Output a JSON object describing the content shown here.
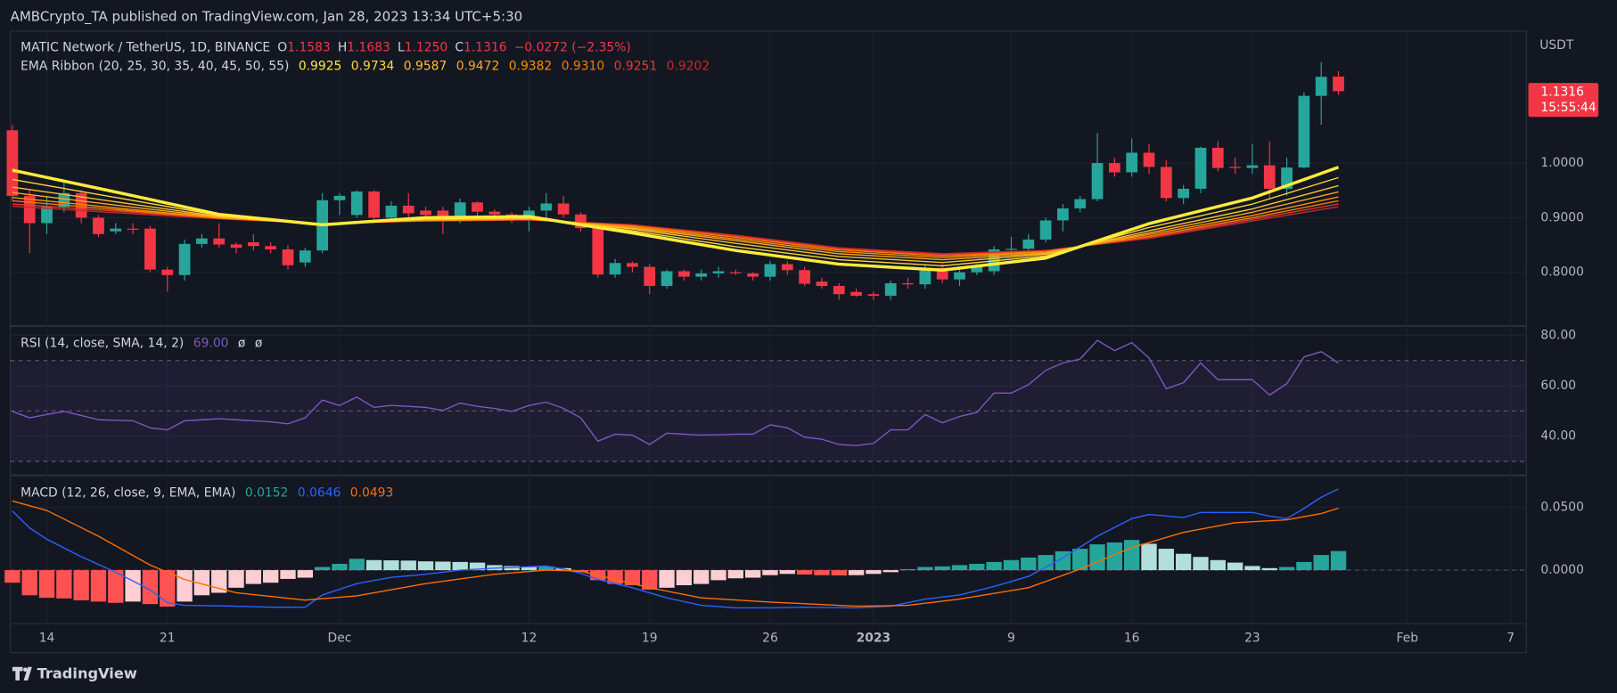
{
  "header": {
    "published": "AMBCrypto_TA published on TradingView.com, Jan 28, 2023 13:34 UTC+5:30"
  },
  "footer": {
    "brand": "TradingView"
  },
  "chart_data": {
    "type": "candlestick",
    "symbol": "MATIC Network / TetherUS, 1D, BINANCE",
    "ohlc_legend": [
      {
        "label": "O",
        "value": "1.1583"
      },
      {
        "label": "H",
        "value": "1.1683"
      },
      {
        "label": "L",
        "value": "1.1250"
      },
      {
        "label": "C",
        "value": "1.1316"
      }
    ],
    "change": "−0.0272 (−2.35%)",
    "legend_color": "#f23645",
    "axis_unit": "USDT",
    "last_price": {
      "label": "1.1316",
      "countdown": "15:55:44",
      "color": "#f23645"
    },
    "categories": [
      "Nov 12",
      "Nov 13",
      "Nov 14",
      "Nov 15",
      "Nov 16",
      "Nov 17",
      "Nov 18",
      "Nov 19",
      "Nov 20",
      "Nov 21",
      "Nov 22",
      "Nov 23",
      "Nov 24",
      "Nov 25",
      "Nov 26",
      "Nov 27",
      "Nov 28",
      "Nov 29",
      "Nov 30",
      "Dec 1",
      "Dec 2",
      "Dec 3",
      "Dec 4",
      "Dec 5",
      "Dec 6",
      "Dec 7",
      "Dec 8",
      "Dec 9",
      "Dec 10",
      "Dec 11",
      "Dec 12",
      "Dec 13",
      "Dec 14",
      "Dec 15",
      "Dec 16",
      "Dec 17",
      "Dec 18",
      "Dec 19",
      "Dec 20",
      "Dec 21",
      "Dec 22",
      "Dec 23",
      "Dec 24",
      "Dec 25",
      "Dec 26",
      "Dec 27",
      "Dec 28",
      "Dec 29",
      "Dec 30",
      "Dec 31",
      "Jan 1",
      "Jan 2",
      "Jan 3",
      "Jan 4",
      "Jan 5",
      "Jan 6",
      "Jan 7",
      "Jan 8",
      "Jan 9",
      "Jan 10",
      "Jan 11",
      "Jan 12",
      "Jan 13",
      "Jan 14",
      "Jan 15",
      "Jan 16",
      "Jan 17",
      "Jan 18",
      "Jan 19",
      "Jan 20",
      "Jan 21",
      "Jan 22",
      "Jan 23",
      "Jan 24",
      "Jan 25",
      "Jan 26",
      "Jan 27",
      "Jan 28",
      "Jan 29",
      "Jan 30",
      "Jan 31",
      "Feb 1",
      "Feb 2",
      "Feb 3",
      "Feb 4",
      "Feb 5",
      "Feb 6",
      "Feb 7",
      "Feb 8"
    ],
    "xticks": [
      {
        "value": "Nov 14",
        "label": "14"
      },
      {
        "value": "Nov 21",
        "label": "21"
      },
      {
        "value": "Dec 1",
        "label": "Dec"
      },
      {
        "value": "Dec 12",
        "label": "12"
      },
      {
        "value": "Dec 19",
        "label": "19"
      },
      {
        "value": "Dec 26",
        "label": "26"
      },
      {
        "value": "Jan 1",
        "label": "2023"
      },
      {
        "value": "Jan 9",
        "label": "9"
      },
      {
        "value": "Jan 16",
        "label": "16"
      },
      {
        "value": "Jan 23",
        "label": "23"
      },
      {
        "value": "Feb 1",
        "label": "Feb"
      },
      {
        "value": "Feb 7",
        "label": "7"
      }
    ],
    "open": [
      1.06,
      0.94,
      0.89,
      0.92,
      0.945,
      0.9,
      0.875,
      0.88,
      0.88,
      0.805,
      0.795,
      0.852,
      0.862,
      0.851,
      0.855,
      0.848,
      0.842,
      0.818,
      0.84,
      0.932,
      0.905,
      0.948,
      0.9,
      0.922,
      0.913,
      0.913,
      0.896,
      0.928,
      0.911,
      0.906,
      0.896,
      0.913,
      0.926,
      0.906,
      0.881,
      0.796,
      0.817,
      0.81,
      0.775,
      0.802,
      0.792,
      0.798,
      0.8,
      0.798,
      0.792,
      0.815,
      0.804,
      0.783,
      0.775,
      0.764,
      0.76,
      0.757,
      0.78,
      0.778,
      0.808,
      0.787,
      0.8,
      0.802,
      0.842,
      0.843,
      0.86,
      0.895,
      0.917,
      0.934,
      1.0,
      0.983,
      1.019,
      0.993,
      0.936,
      0.953,
      1.028,
      0.993,
      0.991,
      0.996,
      0.953,
      0.992,
      1.123,
      1.1583,
      null,
      null,
      null,
      null,
      null,
      null,
      null,
      null,
      null,
      null,
      null
    ],
    "high": [
      1.07,
      0.95,
      0.94,
      0.97,
      0.95,
      0.905,
      0.89,
      0.89,
      0.885,
      0.81,
      0.86,
      0.87,
      0.89,
      0.855,
      0.87,
      0.855,
      0.85,
      0.845,
      0.945,
      0.945,
      0.95,
      0.95,
      0.93,
      0.945,
      0.92,
      0.92,
      0.935,
      0.93,
      0.915,
      0.91,
      0.92,
      0.945,
      0.94,
      0.91,
      0.885,
      0.825,
      0.82,
      0.815,
      0.805,
      0.805,
      0.805,
      0.81,
      0.805,
      0.8,
      0.82,
      0.82,
      0.81,
      0.79,
      0.78,
      0.77,
      0.765,
      0.785,
      0.79,
      0.815,
      0.815,
      0.805,
      0.815,
      0.848,
      0.865,
      0.87,
      0.9,
      0.925,
      0.94,
      1.055,
      1.01,
      1.045,
      1.035,
      1.005,
      0.96,
      1.03,
      1.04,
      1.01,
      1.035,
      1.04,
      1.01,
      1.13,
      1.185,
      1.1683,
      null,
      null,
      null,
      null,
      null,
      null,
      null,
      null,
      null,
      null,
      null
    ],
    "low": [
      0.93,
      0.835,
      0.87,
      0.91,
      0.89,
      0.865,
      0.87,
      0.87,
      0.8,
      0.765,
      0.785,
      0.845,
      0.845,
      0.835,
      0.84,
      0.835,
      0.805,
      0.81,
      0.835,
      0.905,
      0.9,
      0.895,
      0.895,
      0.9,
      0.895,
      0.87,
      0.89,
      0.9,
      0.9,
      0.89,
      0.875,
      0.9,
      0.9,
      0.875,
      0.79,
      0.79,
      0.8,
      0.76,
      0.77,
      0.785,
      0.785,
      0.79,
      0.795,
      0.785,
      0.785,
      0.795,
      0.775,
      0.77,
      0.75,
      0.755,
      0.75,
      0.75,
      0.77,
      0.77,
      0.78,
      0.775,
      0.795,
      0.795,
      0.83,
      0.835,
      0.855,
      0.875,
      0.91,
      0.93,
      0.975,
      0.975,
      0.98,
      0.93,
      0.925,
      0.945,
      0.985,
      0.98,
      0.98,
      0.935,
      0.94,
      0.99,
      1.07,
      1.125,
      null,
      null,
      null,
      null,
      null,
      null,
      null,
      null,
      null,
      null,
      null
    ],
    "close": [
      0.94,
      0.89,
      0.92,
      0.945,
      0.9,
      0.87,
      0.88,
      0.878,
      0.805,
      0.795,
      0.852,
      0.862,
      0.851,
      0.845,
      0.848,
      0.842,
      0.813,
      0.84,
      0.932,
      0.94,
      0.948,
      0.9,
      0.922,
      0.908,
      0.905,
      0.896,
      0.928,
      0.911,
      0.906,
      0.896,
      0.913,
      0.926,
      0.906,
      0.881,
      0.796,
      0.817,
      0.81,
      0.775,
      0.802,
      0.792,
      0.798,
      0.802,
      0.799,
      0.792,
      0.815,
      0.804,
      0.779,
      0.775,
      0.76,
      0.757,
      0.757,
      0.78,
      0.778,
      0.808,
      0.787,
      0.8,
      0.81,
      0.842,
      0.843,
      0.86,
      0.895,
      0.917,
      0.934,
      1.0,
      0.983,
      1.019,
      0.993,
      0.936,
      0.953,
      1.028,
      0.991,
      0.991,
      0.996,
      0.953,
      0.992,
      1.123,
      1.158,
      1.1316,
      null,
      null,
      null,
      null,
      null,
      null,
      null,
      null,
      null,
      null,
      null
    ],
    "up_color": "#26a69a",
    "down_color": "#f23645",
    "ylim": [
      0.7038,
      1.2415
    ],
    "yticks": [
      {
        "value": 0.8,
        "label": "0.8000"
      },
      {
        "value": 0.9,
        "label": "0.9000"
      },
      {
        "value": 1,
        "label": "1.0000"
      }
    ],
    "grid": true,
    "ema_ribbon": {
      "label": "EMA Ribbon (20, 25, 30, 35, 40, 45, 50, 55)",
      "x": [
        "Nov 12",
        "Nov 18",
        "Nov 24",
        "Nov 30",
        "Dec 6",
        "Dec 12",
        "Dec 18",
        "Dec 24",
        "Dec 30",
        "Jan 5",
        "Jan 11",
        "Jan 17",
        "Jan 23",
        "Jan 28"
      ],
      "series": [
        {
          "color": "#ffeb3b",
          "value_label": "0.9925",
          "values": [
            0.987,
            0.947,
            0.906,
            0.887,
            0.9,
            0.902,
            0.872,
            0.84,
            0.815,
            0.804,
            0.826,
            0.889,
            0.936,
            0.9925
          ]
        },
        {
          "color": "#fdd835",
          "value_label": "0.9734",
          "values": [
            0.97,
            0.937,
            0.904,
            0.888,
            0.898,
            0.9,
            0.876,
            0.847,
            0.823,
            0.812,
            0.83,
            0.882,
            0.925,
            0.9734
          ]
        },
        {
          "color": "#fbc02d",
          "value_label": "0.9587",
          "values": [
            0.956,
            0.929,
            0.902,
            0.888,
            0.897,
            0.899,
            0.879,
            0.853,
            0.829,
            0.818,
            0.833,
            0.876,
            0.916,
            0.9587
          ]
        },
        {
          "color": "#f9a825",
          "value_label": "0.9472",
          "values": [
            0.946,
            0.923,
            0.901,
            0.888,
            0.896,
            0.898,
            0.881,
            0.858,
            0.834,
            0.823,
            0.835,
            0.872,
            0.91,
            0.9472
          ]
        },
        {
          "color": "#ff8f00",
          "value_label": "0.9382",
          "values": [
            0.937,
            0.918,
            0.9,
            0.889,
            0.895,
            0.897,
            0.883,
            0.861,
            0.838,
            0.827,
            0.837,
            0.869,
            0.904,
            0.9382
          ]
        },
        {
          "color": "#f57c00",
          "value_label": "0.9310",
          "values": [
            0.931,
            0.915,
            0.899,
            0.889,
            0.895,
            0.897,
            0.885,
            0.864,
            0.841,
            0.83,
            0.838,
            0.866,
            0.9,
            0.931
          ]
        },
        {
          "color": "#e53935",
          "value_label": "0.9251",
          "values": [
            0.925,
            0.912,
            0.899,
            0.889,
            0.894,
            0.896,
            0.886,
            0.866,
            0.843,
            0.832,
            0.839,
            0.864,
            0.897,
            0.9251
          ]
        },
        {
          "color": "#c62828",
          "value_label": "0.9202",
          "values": [
            0.921,
            0.909,
            0.898,
            0.889,
            0.894,
            0.896,
            0.887,
            0.868,
            0.845,
            0.834,
            0.84,
            0.862,
            0.894,
            0.9202
          ]
        }
      ]
    },
    "rsi": {
      "type": "line",
      "label": "RSI (14, close, SMA, 14, 2)",
      "value_label": "69.00",
      "extra_labels": [
        "ø",
        "ø"
      ],
      "color": "#7e57c2",
      "values": [
        49.8,
        47.3,
        48.6,
        49.8,
        48.2,
        46.5,
        46.3,
        46.1,
        43.3,
        42.5,
        46.1,
        46.5,
        46.9,
        46.5,
        46.1,
        45.7,
        44.9,
        47.3,
        54.3,
        52.2,
        55.5,
        51.4,
        52.2,
        51.8,
        51.4,
        50.2,
        53.1,
        51.8,
        51.0,
        49.8,
        52.2,
        53.5,
        51.0,
        47.3,
        38.0,
        40.8,
        40.4,
        36.7,
        41.2,
        40.8,
        40.4,
        40.6,
        40.8,
        40.8,
        44.5,
        43.3,
        39.6,
        38.8,
        36.7,
        36.3,
        37.1,
        42.5,
        42.5,
        48.6,
        45.3,
        47.8,
        49.4,
        57.1,
        57.1,
        60.4,
        66.1,
        69.0,
        70.6,
        78.0,
        73.9,
        77.1,
        71.0,
        58.8,
        61.2,
        69.0,
        62.4,
        62.4,
        62.4,
        56.3,
        60.8,
        71.4,
        73.5,
        69,
        null,
        null,
        null,
        null,
        null,
        null,
        null,
        null,
        null,
        null,
        null
      ],
      "ylim": [
        24.9,
        83.3
      ],
      "yticks": [
        {
          "value": 40,
          "label": "40.00"
        },
        {
          "value": 60,
          "label": "60.00"
        },
        {
          "value": 80,
          "label": "80.00"
        }
      ],
      "levels": [
        30,
        50,
        70
      ],
      "band": [
        30,
        70
      ],
      "band_color": "#7e57c2"
    },
    "macd": {
      "type": "macd",
      "label": "MACD (12, 26, close, 9, EMA, EMA)",
      "histogram": {
        "value_label": "0.0152",
        "color": "#26a69a",
        "colors": {
          "up": "#26a69a",
          "up_falling": "#b2dfdb",
          "down": "#ff5252",
          "down_rising": "#ffcdd2"
        },
        "values": [
          -0.01,
          -0.02,
          -0.022,
          -0.0225,
          -0.024,
          -0.025,
          -0.026,
          -0.025,
          -0.027,
          -0.029,
          -0.025,
          -0.02,
          -0.018,
          -0.014,
          -0.011,
          -0.01,
          -0.007,
          -0.006,
          0.0025,
          0.005,
          0.009,
          0.008,
          0.0078,
          0.0076,
          0.007,
          0.0068,
          0.0065,
          0.006,
          0.004,
          0.0033,
          0.0025,
          0.003,
          0.0016,
          -0.0016,
          -0.008,
          -0.011,
          -0.012,
          -0.0155,
          -0.014,
          -0.012,
          -0.011,
          -0.008,
          -0.0065,
          -0.006,
          -0.004,
          -0.003,
          -0.0035,
          -0.004,
          -0.0042,
          -0.004,
          -0.003,
          -0.0016,
          0.0008,
          0.0025,
          0.003,
          0.004,
          0.005,
          0.0065,
          0.008,
          0.01,
          0.012,
          0.015,
          0.017,
          0.0205,
          0.022,
          0.024,
          0.021,
          0.017,
          0.013,
          0.0105,
          0.008,
          0.006,
          0.0033,
          0.0016,
          0.0025,
          0.0065,
          0.012,
          0.0152,
          null,
          null,
          null,
          null,
          null,
          null,
          null,
          null,
          null,
          null,
          null
        ]
      },
      "macd": {
        "color": "#2962ff",
        "value_label": "0.0646",
        "x": [
          "Nov 12",
          "Nov 13",
          "Nov 14",
          "Nov 16",
          "Nov 18",
          "Nov 20",
          "Nov 21",
          "Nov 22",
          "Nov 25",
          "Nov 27",
          "Nov 29",
          "Nov 30",
          "Dec 2",
          "Dec 4",
          "Dec 6",
          "Dec 8",
          "Dec 10",
          "Dec 13",
          "Dec 14",
          "Dec 15",
          "Dec 16",
          "Dec 18",
          "Dec 20",
          "Dec 22",
          "Dec 24",
          "Dec 26",
          "Dec 28",
          "Dec 31",
          "Jan 2",
          "Jan 4",
          "Jan 6",
          "Jan 8",
          "Jan 10",
          "Jan 12",
          "Jan 14",
          "Jan 16",
          "Jan 17",
          "Jan 19",
          "Jan 20",
          "Jan 23",
          "Jan 24",
          "Jan 25",
          "Jan 26",
          "Jan 27",
          "Jan 28"
        ],
        "values": [
          0.047,
          0.0336,
          0.0246,
          0.0107,
          -0.0016,
          -0.0156,
          -0.026,
          -0.028,
          -0.0287,
          -0.0295,
          -0.0295,
          -0.0197,
          -0.0107,
          -0.0057,
          -0.0033,
          0,
          0.0016,
          0.0033,
          0.0008,
          -0.0025,
          -0.0074,
          -0.014,
          -0.022,
          -0.028,
          -0.03,
          -0.03,
          -0.0295,
          -0.03,
          -0.0287,
          -0.023,
          -0.0197,
          -0.013,
          -0.005,
          0.0098,
          0.027,
          0.041,
          0.0443,
          0.0418,
          0.0459,
          0.0459,
          0.043,
          0.041,
          0.049,
          0.058,
          0.0646
        ]
      },
      "signal": {
        "color": "#ff6d00",
        "value_label": "0.0493",
        "x": [
          "Nov 12",
          "Nov 14",
          "Nov 17",
          "Nov 20",
          "Nov 22",
          "Nov 25",
          "Nov 29",
          "Dec 2",
          "Dec 6",
          "Dec 10",
          "Dec 13",
          "Dec 15",
          "Dec 19",
          "Dec 22",
          "Dec 26",
          "Dec 31",
          "Jan 3",
          "Jan 6",
          "Jan 10",
          "Jan 13",
          "Jan 16",
          "Jan 19",
          "Jan 22",
          "Jan 25",
          "Jan 27",
          "Jan 28"
        ],
        "values": [
          0.055,
          0.0475,
          0.027,
          0.004,
          -0.0074,
          -0.018,
          -0.0238,
          -0.0205,
          -0.0107,
          -0.0033,
          0,
          -0.0008,
          -0.014,
          -0.022,
          -0.0254,
          -0.0287,
          -0.028,
          -0.023,
          -0.014,
          0.0008,
          0.018,
          0.03,
          0.0377,
          0.04,
          0.045,
          0.0493
        ]
      },
      "ylim": [
        -0.0426,
        0.0746
      ],
      "yticks": [
        {
          "value": 0,
          "label": "0.0000"
        },
        {
          "value": 0.05,
          "label": "0.0500"
        }
      ],
      "zero_line": 0
    }
  }
}
